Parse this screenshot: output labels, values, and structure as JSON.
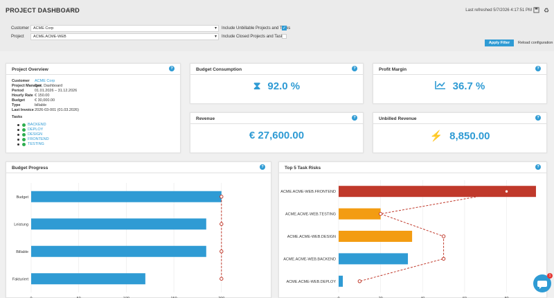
{
  "header": {
    "title": "PROJECT DASHBOARD",
    "filter_toggle": "Filter",
    "last_refreshed": "Last refreshed 5/7/2026 4:17:51 PM"
  },
  "filters": {
    "customer_label": "Customer",
    "customer_value": "ACME Corp",
    "project_label": "Project",
    "project_value": "ACME.ACME-WEB",
    "unbillable_label": "Include Unbillable Projects and Tasks",
    "unbillable_checked": true,
    "closed_label": "Include Closed Projects and Tasks",
    "closed_checked": false,
    "apply_label": "Apply Filter",
    "reload_label": "Reload configuration"
  },
  "overview": {
    "title": "Project Overview",
    "rows": [
      {
        "key": "Customer",
        "value": "ACME Corp"
      },
      {
        "key": "Project Manager",
        "value": "Test, Dashboard"
      },
      {
        "key": "Period",
        "value": "01.01.2026 – 31.12.2026"
      },
      {
        "key": "Hourly Rate",
        "value": "€ 150.00"
      },
      {
        "key": "Budget",
        "value": "€ 30,000.00"
      },
      {
        "key": "Type",
        "value": "billable"
      },
      {
        "key": "Last Invoice",
        "value": "2026-03-001 (01.03.2026)"
      }
    ],
    "tasks_label": "Tasks",
    "tasks": [
      "BACKEND",
      "DEPLOY",
      "DESIGN",
      "FRONTEND",
      "TESTING"
    ]
  },
  "kpis": {
    "budget_consumption": {
      "title": "Budget Consumption",
      "value": "92.0 %"
    },
    "profit_margin": {
      "title": "Profit Margin",
      "value": "36.7 %"
    },
    "revenue": {
      "title": "Revenue",
      "value": "€  27,600.00"
    },
    "unbilled_revenue": {
      "title": "Unbilled Revenue",
      "value": "8,850.00"
    }
  },
  "chart_data": [
    {
      "type": "bar",
      "title": "Budget Progress",
      "orientation": "horizontal",
      "categories": [
        "Budget",
        "Leistung",
        "Billable",
        "Fakturiert"
      ],
      "values": [
        200,
        184,
        184,
        120
      ],
      "marker_values": [
        200,
        200,
        200,
        200
      ],
      "xlim": [
        0,
        230
      ],
      "xticks": [
        0,
        50,
        100,
        150,
        200
      ],
      "bar_color": "#2f9bd4",
      "marker_color": "#c0392b",
      "grid": true
    },
    {
      "type": "bar",
      "title": "Top 5 Task Risks",
      "orientation": "horizontal",
      "categories": [
        "ACME.ACME-WEB.FRONTEND",
        "ACME.ACME-WEB.TESTING",
        "ACME.ACME-WEB.DESIGN",
        "ACME.ACME-WEB.BACKEND",
        "ACME.ACME-WEB.DEPLOY"
      ],
      "values": [
        94,
        20,
        35,
        33,
        2
      ],
      "marker_values": [
        80,
        20,
        50,
        50,
        10
      ],
      "colors": [
        "#c0392b",
        "#f39c12",
        "#f39c12",
        "#2f9bd4",
        "#2f9bd4"
      ],
      "xlim": [
        0,
        95
      ],
      "xticks": [
        0,
        20,
        40,
        60,
        80
      ],
      "marker_color": "#c0392b",
      "grid": true
    }
  ],
  "chat": {
    "badge": "1"
  }
}
